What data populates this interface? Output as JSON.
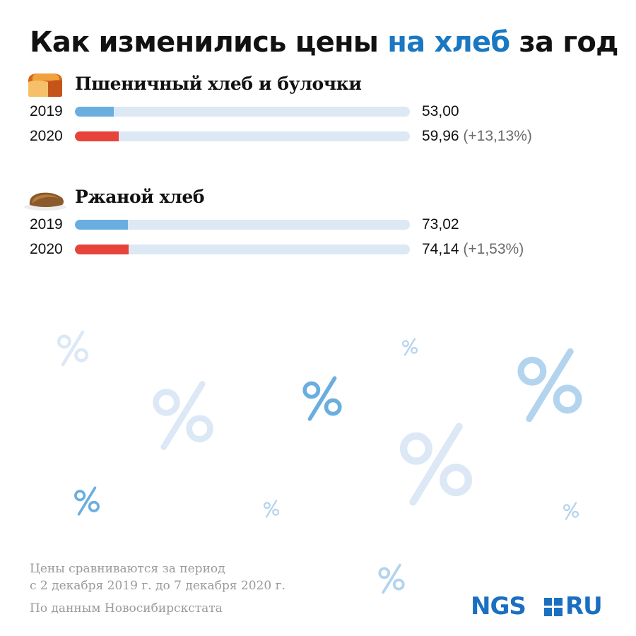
{
  "title": {
    "before": "Как изменились цены ",
    "accent": "на хлеб",
    "after": " за год"
  },
  "colors": {
    "accent": "#1a78c2",
    "bar_2019": "#6aaee0",
    "bar_2020": "#e8433a",
    "track": "#dce8f3",
    "decor_light": "#dce8f5",
    "decor_mid": "#b3d4ee",
    "decor_strong": "#6aaee0"
  },
  "icons": [
    "bread-loaf-icon",
    "rye-bread-icon"
  ],
  "chart_data": {
    "type": "bar",
    "orientation": "horizontal",
    "unit": "",
    "xlim": [
      0,
      460
    ],
    "groups": [
      {
        "name": "Пшеничный хлеб и булочки",
        "icon": "bread-loaf-icon",
        "rows": [
          {
            "year": "2019",
            "value": 53.0,
            "label": "53,00",
            "change": ""
          },
          {
            "year": "2020",
            "value": 59.96,
            "label": "59,96",
            "change": "(+13,13%)"
          }
        ]
      },
      {
        "name": "Ржаной хлеб",
        "icon": "rye-bread-icon",
        "rows": [
          {
            "year": "2019",
            "value": 73.02,
            "label": "73,02",
            "change": ""
          },
          {
            "year": "2020",
            "value": 74.14,
            "label": "74,14",
            "change": "(+1,53%)"
          }
        ]
      }
    ]
  },
  "footer": {
    "note_line1": "Цены сравниваются за период",
    "note_line2": "с 2 декабря 2019 г. до 7 декабря 2020 г.",
    "source": "По данным Новосибирскстата"
  },
  "logo": {
    "left": "NGS",
    "right": "RU"
  }
}
